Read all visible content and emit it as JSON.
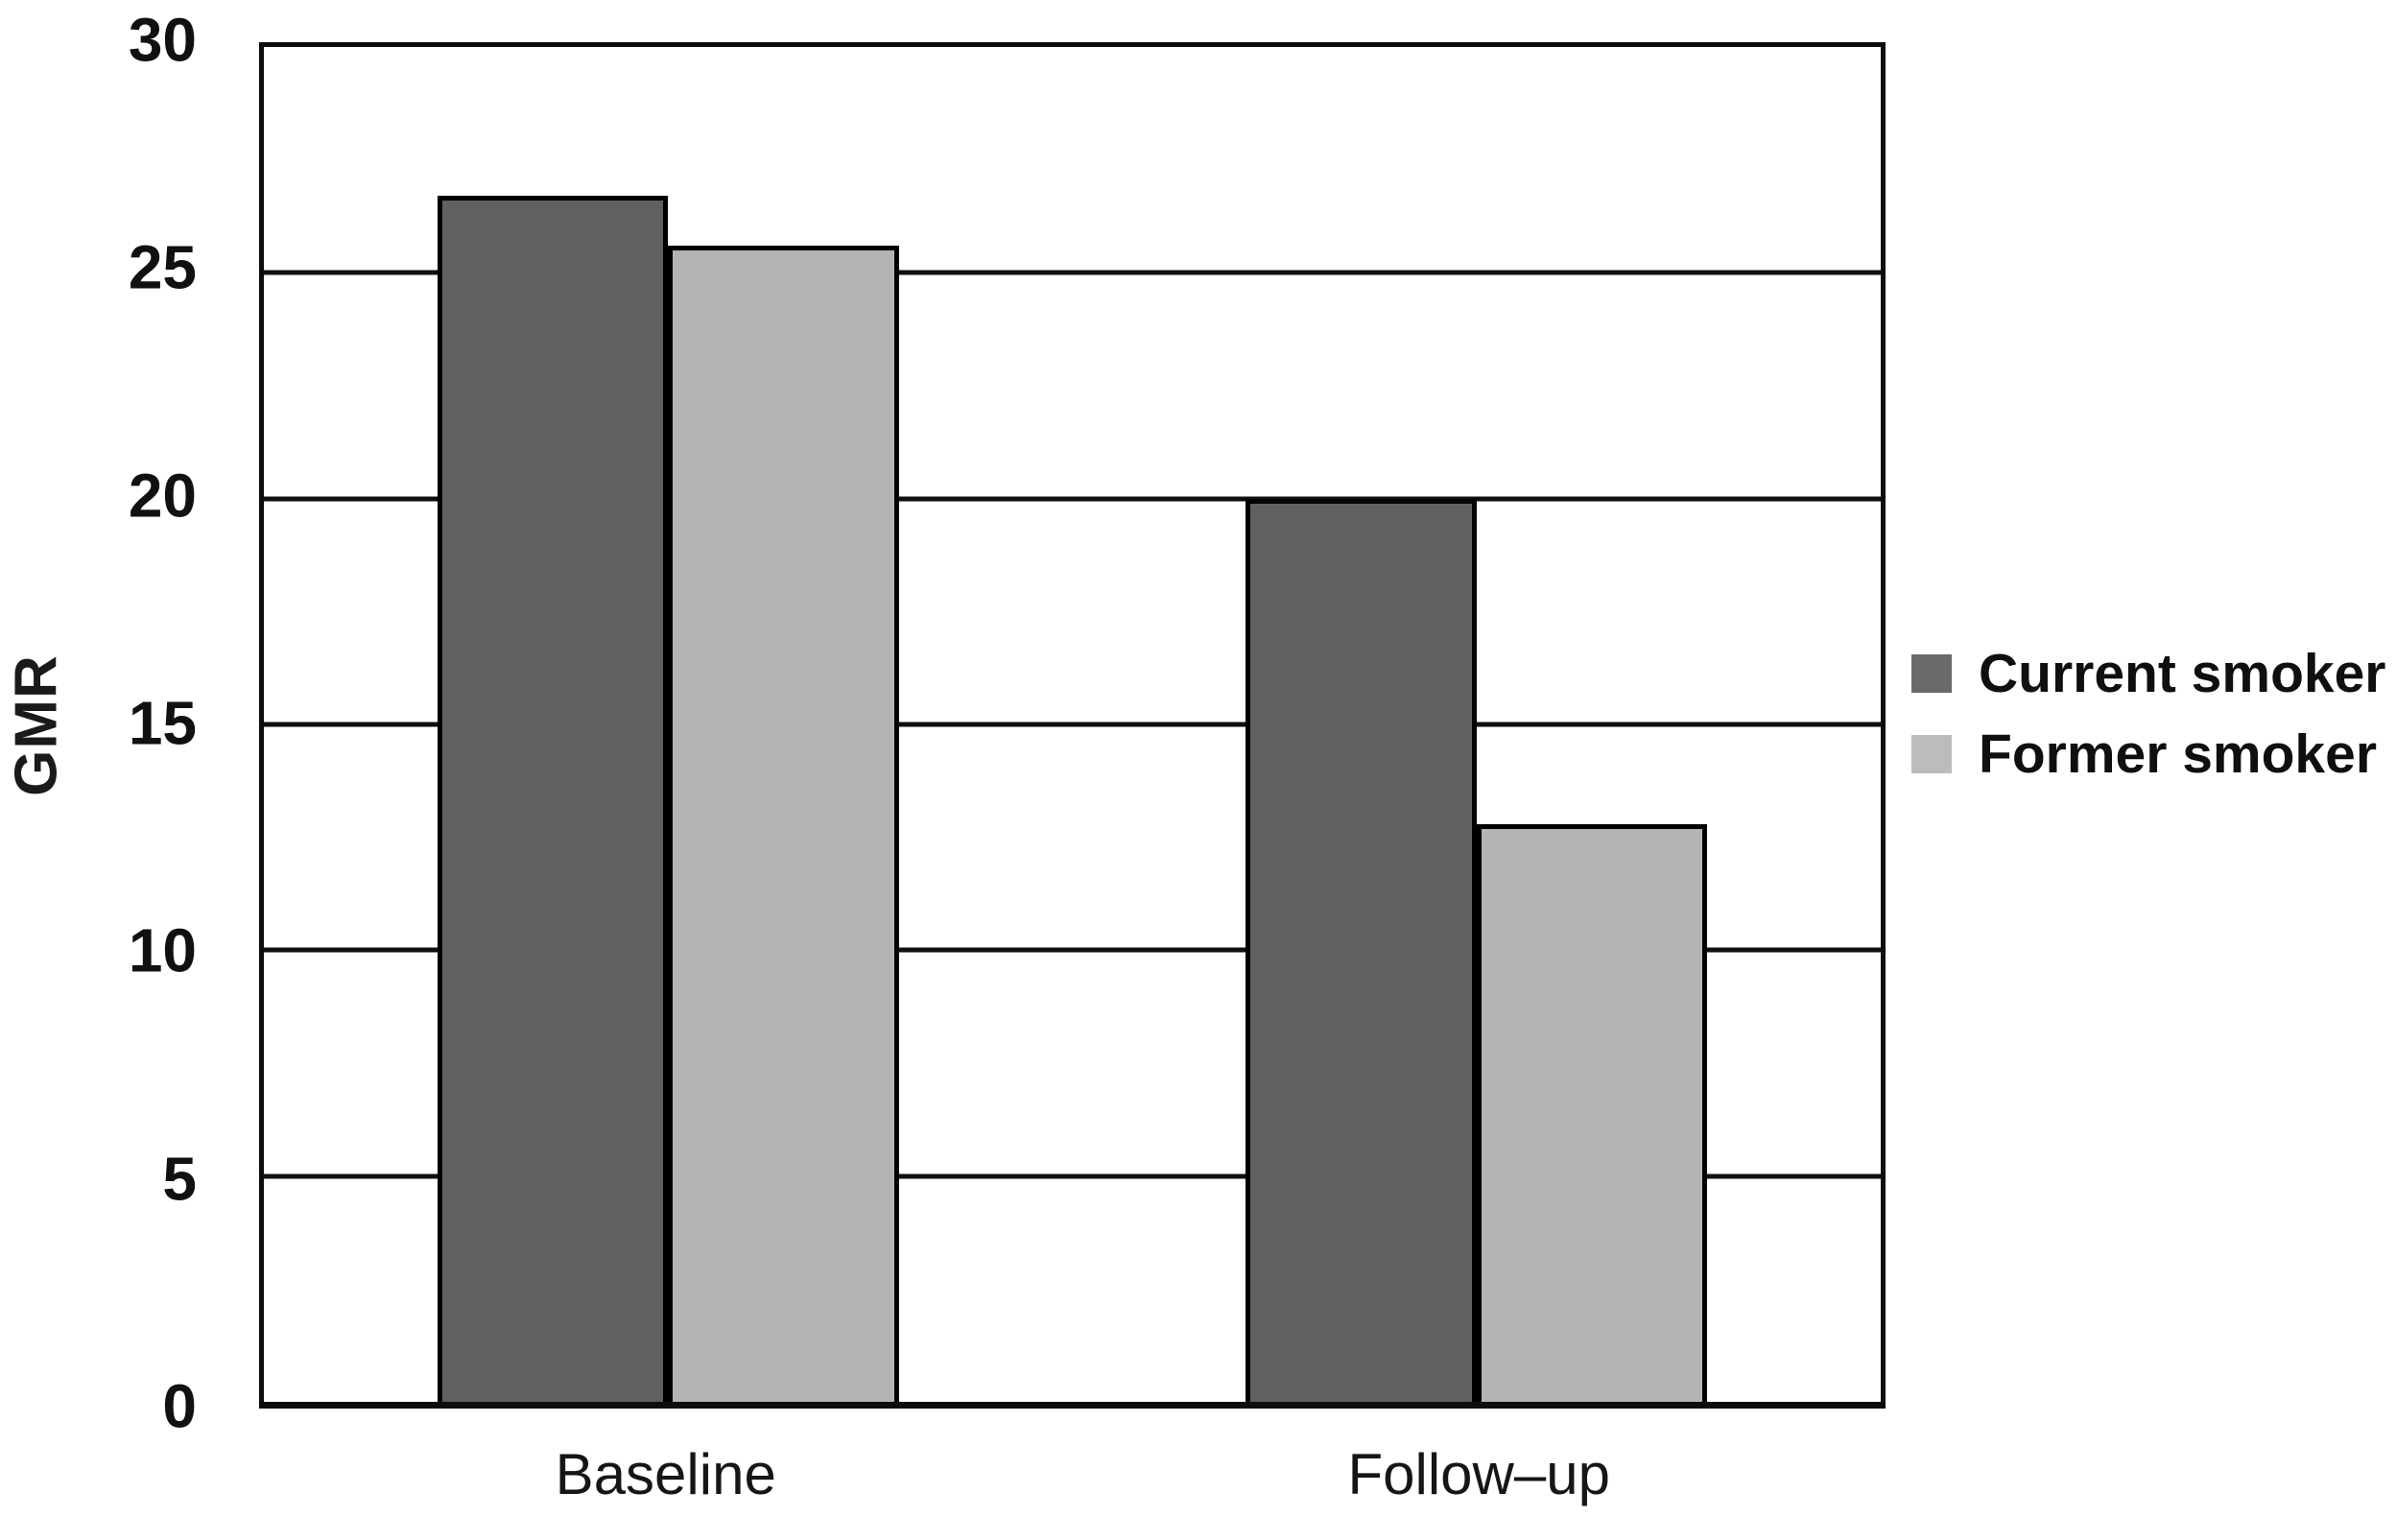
{
  "chart_data": {
    "type": "bar",
    "title": "",
    "categories": [
      "Baseline",
      "Follow–up"
    ],
    "series": [
      {
        "name": "Current smoker",
        "values": [
          26.7,
          20.0
        ],
        "color": "#606060",
        "legend_color": "#6a6a6a"
      },
      {
        "name": "Former smoker",
        "values": [
          25.6,
          12.8
        ],
        "color": "#b4b4b4",
        "legend_color": "#bcbcbc"
      }
    ],
    "xlabel": "",
    "ylabel": "GMR",
    "ylim": [
      0,
      30
    ],
    "yticks": [
      0,
      5,
      10,
      15,
      20,
      25,
      30
    ],
    "grid": "horizontal",
    "legend_position": "right",
    "bar_border_color": "#000000",
    "axis_color": "#0d0d0d"
  }
}
